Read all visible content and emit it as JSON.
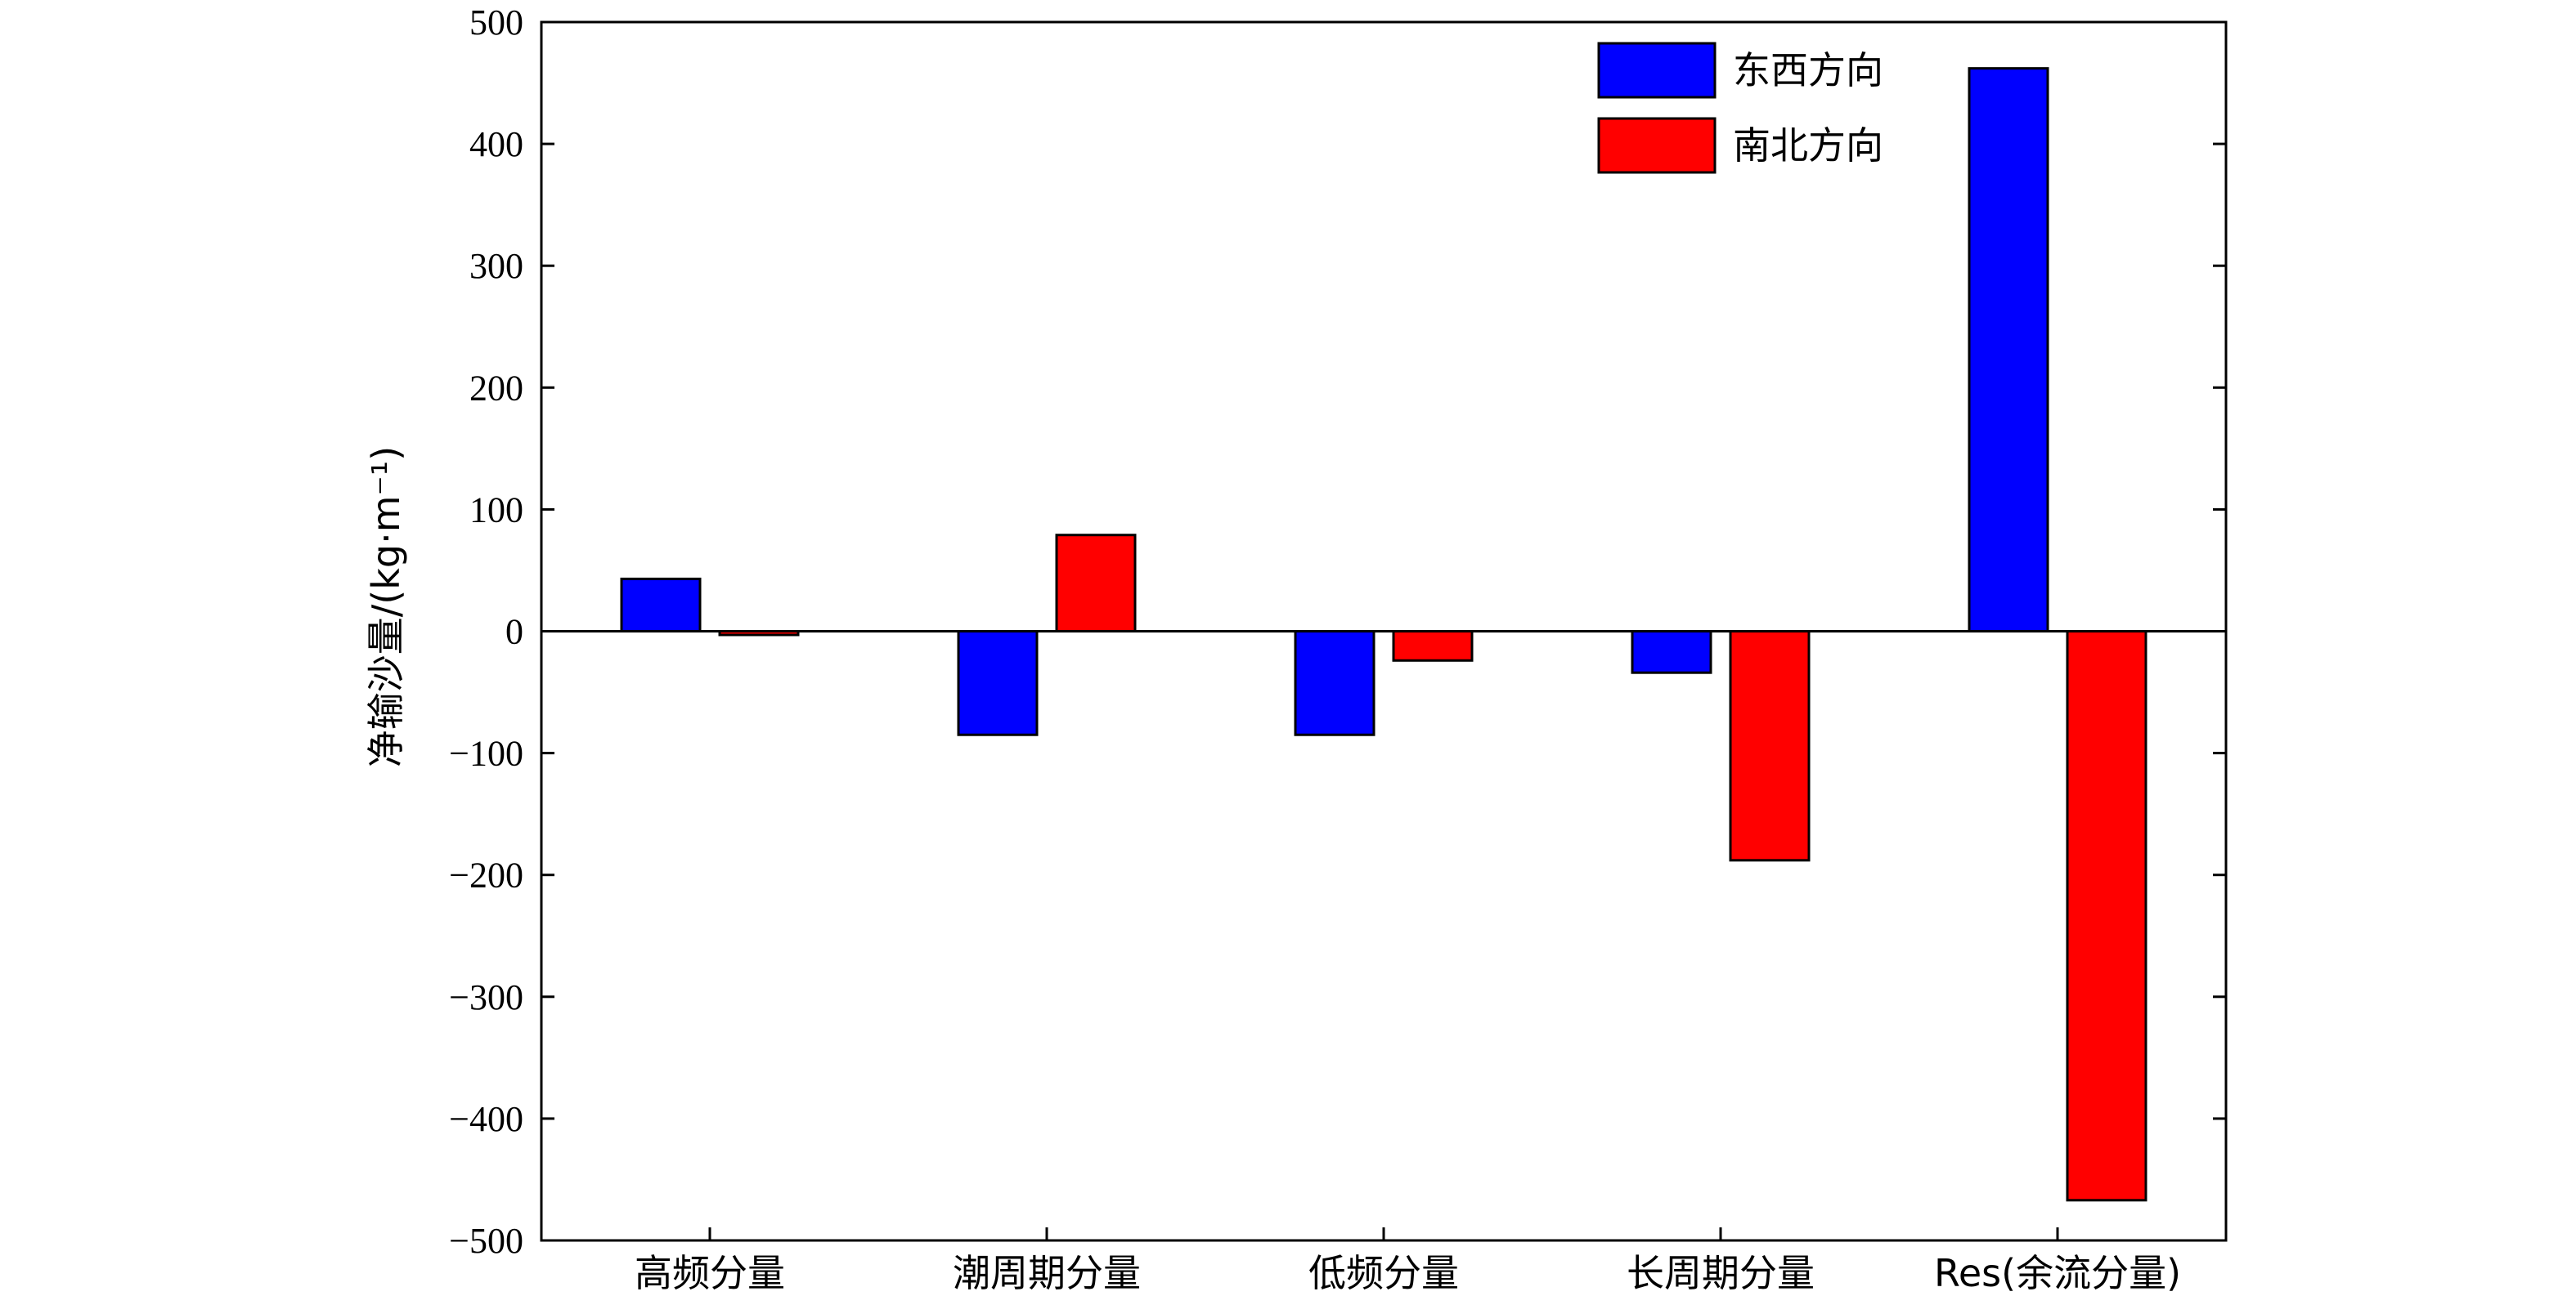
{
  "chart_data": {
    "type": "bar",
    "title": "",
    "xlabel": "",
    "ylabel": "净输沙量/(kg·m⁻¹)",
    "ylim": [
      -500,
      500
    ],
    "yticks": [
      500,
      400,
      300,
      200,
      100,
      0,
      -100,
      -200,
      -300,
      -400,
      -500
    ],
    "ytick_labels": [
      "500",
      "400",
      "300",
      "200",
      "100",
      "0",
      "−100",
      "−200",
      "−300",
      "−400",
      "−500"
    ],
    "categories": [
      "高频分量",
      "潮周期分量",
      "低频分量",
      "长周期分量",
      "Res(余流分量)"
    ],
    "series": [
      {
        "name": "东西方向",
        "color": "#0000ff",
        "values": [
          43,
          -85,
          -85,
          -34,
          462
        ]
      },
      {
        "name": "南北方向",
        "color": "#ff0000",
        "values": [
          -3,
          79,
          -24,
          -188,
          -467
        ]
      }
    ],
    "grid": false,
    "legend_position": "top-right"
  }
}
